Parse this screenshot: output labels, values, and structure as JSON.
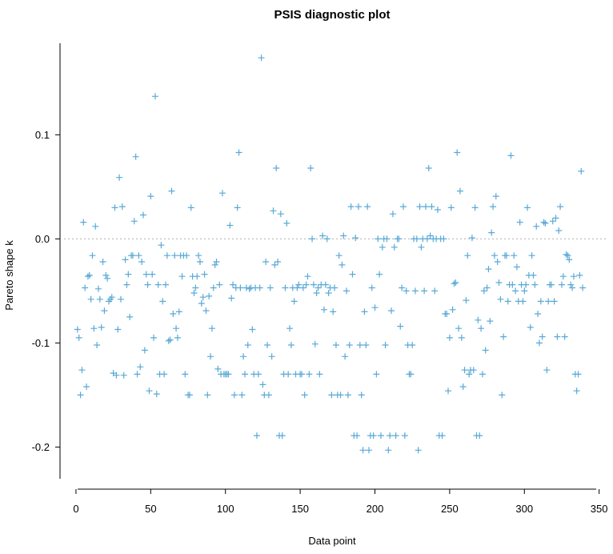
{
  "chart_data": {
    "type": "scatter",
    "title": "PSIS diagnostic plot",
    "xlabel": "Data point",
    "ylabel": "Pareto shape k",
    "xlim": [
      -8,
      355
    ],
    "ylim": [
      -0.232,
      0.188
    ],
    "xticks": [
      0,
      50,
      100,
      150,
      200,
      250,
      300,
      350
    ],
    "yticks": [
      -0.2,
      -0.1,
      0.0,
      0.1
    ],
    "ytick_labels": [
      "-0.2",
      "-0.1",
      "0.0",
      "0.1"
    ],
    "reference_line_y": 0.0,
    "grid": false,
    "marker": "+",
    "color": "#5aa9d6",
    "y": [
      -0.087,
      -0.095,
      -0.15,
      -0.126,
      0.016,
      -0.047,
      -0.142,
      -0.036,
      -0.035,
      -0.058,
      -0.016,
      -0.086,
      0.012,
      -0.102,
      -0.048,
      -0.058,
      -0.085,
      -0.022,
      -0.069,
      -0.035,
      -0.038,
      -0.06,
      -0.058,
      -0.056,
      -0.129,
      0.03,
      -0.131,
      -0.087,
      0.059,
      -0.058,
      0.031,
      -0.131,
      -0.02,
      -0.044,
      -0.034,
      -0.075,
      -0.016,
      -0.016,
      0.017,
      0.079,
      -0.13,
      -0.016,
      -0.123,
      -0.022,
      0.023,
      -0.107,
      -0.034,
      -0.044,
      -0.146,
      0.041,
      -0.034,
      -0.095,
      0.137,
      -0.149,
      -0.044,
      -0.13,
      -0.006,
      -0.06,
      -0.13,
      -0.044,
      -0.016,
      -0.098,
      -0.097,
      0.046,
      -0.072,
      -0.016,
      -0.086,
      -0.095,
      -0.07,
      -0.016,
      -0.036,
      -0.016,
      -0.13,
      -0.016,
      -0.15,
      -0.15,
      0.03,
      -0.036,
      -0.052,
      -0.047,
      -0.036,
      -0.016,
      -0.022,
      -0.062,
      -0.056,
      -0.034,
      -0.069,
      -0.15,
      -0.055,
      -0.113,
      -0.086,
      -0.047,
      -0.025,
      -0.022,
      -0.125,
      -0.044,
      -0.13,
      0.044,
      -0.13,
      -0.13,
      -0.13,
      -0.13,
      0.013,
      -0.057,
      -0.044,
      -0.15,
      -0.047,
      0.03,
      0.083,
      -0.047,
      -0.15,
      -0.113,
      -0.13,
      -0.047,
      -0.102,
      -0.048,
      -0.047,
      -0.087,
      -0.13,
      -0.047,
      -0.189,
      -0.13,
      -0.047,
      0.174,
      -0.14,
      -0.15,
      -0.022,
      -0.102,
      -0.15,
      -0.047,
      -0.113,
      0.027,
      -0.025,
      0.068,
      -0.022,
      -0.189,
      0.024,
      -0.189,
      -0.13,
      -0.047,
      0.015,
      -0.13,
      -0.086,
      -0.102,
      -0.047,
      -0.06,
      -0.13,
      -0.047,
      -0.044,
      -0.13,
      -0.13,
      -0.047,
      -0.15,
      -0.044,
      -0.036,
      -0.13,
      0.068,
      0.0,
      -0.044,
      -0.101,
      -0.052,
      -0.047,
      -0.13,
      -0.044,
      0.003,
      -0.068,
      -0.044,
      0.0,
      -0.052,
      -0.047,
      -0.15,
      -0.07,
      -0.047,
      -0.102,
      -0.15,
      -0.016,
      -0.15,
      -0.025,
      0.003,
      -0.113,
      -0.05,
      -0.15,
      -0.102,
      0.031,
      -0.034,
      -0.189,
      0.001,
      -0.189,
      0.031,
      -0.102,
      -0.15,
      -0.203,
      -0.07,
      -0.102,
      0.031,
      -0.203,
      -0.189,
      -0.047,
      -0.189,
      -0.066,
      -0.13,
      0.0,
      -0.034,
      -0.189,
      -0.008,
      0.0,
      -0.102,
      0.0,
      -0.203,
      -0.189,
      -0.069,
      0.024,
      -0.008,
      -0.189,
      0.0,
      0.0,
      -0.084,
      -0.047,
      0.031,
      -0.189,
      -0.05,
      -0.102,
      -0.13,
      -0.13,
      -0.102,
      0.0,
      -0.05,
      0.0,
      -0.203,
      0.031,
      -0.008,
      0.0,
      -0.05,
      0.031,
      0.0,
      0.068,
      0.003,
      0.031,
      0.0,
      -0.05,
      0.0,
      0.028,
      -0.189,
      0.0,
      -0.189,
      0.0,
      -0.072,
      -0.072,
      -0.146,
      -0.095,
      0.03,
      -0.068,
      -0.043,
      -0.042,
      0.083,
      -0.086,
      0.046,
      -0.095,
      -0.142,
      -0.126,
      -0.059,
      -0.016,
      -0.13,
      -0.126,
      0.001,
      -0.126,
      0.03,
      -0.189,
      -0.078,
      -0.189,
      -0.086,
      -0.13,
      -0.05,
      -0.107,
      -0.047,
      -0.029,
      -0.079,
      0.006,
      0.031,
      -0.016,
      0.041,
      -0.022,
      -0.042,
      -0.058,
      -0.15,
      -0.094,
      -0.016,
      -0.016,
      -0.06,
      -0.044,
      0.08,
      -0.044,
      -0.016,
      -0.05,
      -0.027,
      -0.06,
      0.016,
      -0.044,
      -0.06,
      -0.05,
      -0.044,
      0.03,
      -0.035,
      -0.085,
      -0.016,
      -0.035,
      -0.044,
      0.012,
      -0.072,
      -0.1,
      -0.06,
      -0.094,
      0.016,
      0.015,
      -0.126,
      -0.06,
      -0.044,
      -0.044,
      0.017,
      -0.06,
      0.02,
      -0.094,
      0.008,
      0.031,
      -0.044,
      -0.036,
      -0.094,
      -0.015,
      -0.016,
      -0.02,
      -0.044,
      -0.047,
      -0.036,
      -0.13,
      -0.146,
      -0.13,
      -0.035,
      0.065,
      -0.047
    ]
  }
}
